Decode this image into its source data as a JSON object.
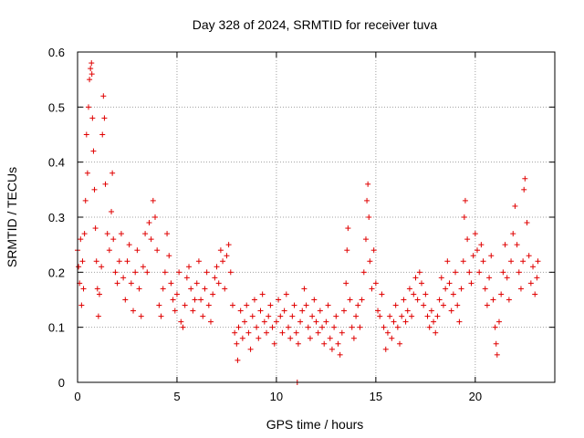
{
  "chart_data": {
    "type": "scatter",
    "title": "Day 328 of 2024, SRMTID for receiver tuva",
    "xlabel": "GPS time / hours",
    "ylabel": "SRMTID / TECUs",
    "xlim": [
      0,
      24
    ],
    "ylim": [
      0,
      0.6
    ],
    "xticks": [
      0,
      5,
      10,
      15,
      20
    ],
    "yticks": [
      0,
      0.1,
      0.2,
      0.3,
      0.4,
      0.5,
      0.6
    ],
    "xtick_labels": [
      "0",
      "5",
      "10",
      "15",
      "20"
    ],
    "ytick_labels": [
      "0",
      "0.1",
      "0.2",
      "0.3",
      "0.4",
      "0.5",
      "0.6"
    ],
    "grid": true,
    "marker": "+",
    "series": [
      {
        "name": "SRMTID",
        "color": "#e00000",
        "points": [
          [
            0.0,
            0.24
          ],
          [
            0.05,
            0.21
          ],
          [
            0.1,
            0.18
          ],
          [
            0.15,
            0.26
          ],
          [
            0.2,
            0.14
          ],
          [
            0.25,
            0.22
          ],
          [
            0.3,
            0.17
          ],
          [
            0.35,
            0.27
          ],
          [
            0.4,
            0.33
          ],
          [
            0.45,
            0.45
          ],
          [
            0.5,
            0.38
          ],
          [
            0.55,
            0.5
          ],
          [
            0.6,
            0.55
          ],
          [
            0.65,
            0.57
          ],
          [
            0.7,
            0.58
          ],
          [
            0.72,
            0.56
          ],
          [
            0.75,
            0.48
          ],
          [
            0.8,
            0.42
          ],
          [
            0.85,
            0.35
          ],
          [
            0.9,
            0.28
          ],
          [
            0.95,
            0.22
          ],
          [
            1.0,
            0.17
          ],
          [
            1.05,
            0.12
          ],
          [
            1.1,
            0.16
          ],
          [
            1.2,
            0.21
          ],
          [
            1.25,
            0.45
          ],
          [
            1.3,
            0.52
          ],
          [
            1.35,
            0.48
          ],
          [
            1.4,
            0.36
          ],
          [
            1.5,
            0.27
          ],
          [
            1.6,
            0.24
          ],
          [
            1.7,
            0.31
          ],
          [
            1.75,
            0.38
          ],
          [
            1.8,
            0.26
          ],
          [
            1.9,
            0.2
          ],
          [
            2.0,
            0.18
          ],
          [
            2.1,
            0.22
          ],
          [
            2.2,
            0.27
          ],
          [
            2.3,
            0.19
          ],
          [
            2.4,
            0.15
          ],
          [
            2.5,
            0.22
          ],
          [
            2.6,
            0.25
          ],
          [
            2.7,
            0.18
          ],
          [
            2.8,
            0.13
          ],
          [
            2.9,
            0.2
          ],
          [
            3.0,
            0.24
          ],
          [
            3.1,
            0.17
          ],
          [
            3.2,
            0.12
          ],
          [
            3.3,
            0.21
          ],
          [
            3.4,
            0.27
          ],
          [
            3.5,
            0.2
          ],
          [
            3.6,
            0.29
          ],
          [
            3.7,
            0.26
          ],
          [
            3.8,
            0.33
          ],
          [
            3.9,
            0.3
          ],
          [
            4.0,
            0.24
          ],
          [
            4.1,
            0.14
          ],
          [
            4.2,
            0.12
          ],
          [
            4.3,
            0.17
          ],
          [
            4.4,
            0.2
          ],
          [
            4.5,
            0.27
          ],
          [
            4.6,
            0.23
          ],
          [
            4.7,
            0.18
          ],
          [
            4.8,
            0.15
          ],
          [
            4.9,
            0.13
          ],
          [
            5.0,
            0.16
          ],
          [
            5.1,
            0.2
          ],
          [
            5.2,
            0.11
          ],
          [
            5.3,
            0.1
          ],
          [
            5.4,
            0.14
          ],
          [
            5.5,
            0.19
          ],
          [
            5.6,
            0.21
          ],
          [
            5.7,
            0.17
          ],
          [
            5.8,
            0.13
          ],
          [
            5.9,
            0.15
          ],
          [
            6.0,
            0.18
          ],
          [
            6.1,
            0.22
          ],
          [
            6.2,
            0.15
          ],
          [
            6.3,
            0.12
          ],
          [
            6.4,
            0.17
          ],
          [
            6.5,
            0.2
          ],
          [
            6.6,
            0.14
          ],
          [
            6.7,
            0.11
          ],
          [
            6.8,
            0.16
          ],
          [
            6.9,
            0.19
          ],
          [
            7.0,
            0.21
          ],
          [
            7.1,
            0.18
          ],
          [
            7.2,
            0.24
          ],
          [
            7.3,
            0.22
          ],
          [
            7.4,
            0.17
          ],
          [
            7.5,
            0.23
          ],
          [
            7.6,
            0.25
          ],
          [
            7.7,
            0.2
          ],
          [
            7.8,
            0.14
          ],
          [
            7.9,
            0.09
          ],
          [
            8.0,
            0.07
          ],
          [
            8.05,
            0.04
          ],
          [
            8.1,
            0.1
          ],
          [
            8.2,
            0.13
          ],
          [
            8.3,
            0.08
          ],
          [
            8.4,
            0.11
          ],
          [
            8.5,
            0.14
          ],
          [
            8.6,
            0.09
          ],
          [
            8.7,
            0.06
          ],
          [
            8.8,
            0.12
          ],
          [
            8.9,
            0.15
          ],
          [
            9.0,
            0.1
          ],
          [
            9.1,
            0.08
          ],
          [
            9.2,
            0.13
          ],
          [
            9.3,
            0.16
          ],
          [
            9.4,
            0.11
          ],
          [
            9.5,
            0.09
          ],
          [
            9.6,
            0.12
          ],
          [
            9.7,
            0.14
          ],
          [
            9.8,
            0.1
          ],
          [
            9.9,
            0.07
          ],
          [
            10.0,
            0.11
          ],
          [
            10.1,
            0.15
          ],
          [
            10.2,
            0.12
          ],
          [
            10.3,
            0.09
          ],
          [
            10.4,
            0.13
          ],
          [
            10.5,
            0.16
          ],
          [
            10.6,
            0.1
          ],
          [
            10.7,
            0.08
          ],
          [
            10.8,
            0.12
          ],
          [
            10.9,
            0.14
          ],
          [
            11.0,
            0.09
          ],
          [
            11.05,
            0.0
          ],
          [
            11.1,
            0.07
          ],
          [
            11.2,
            0.11
          ],
          [
            11.3,
            0.13
          ],
          [
            11.4,
            0.17
          ],
          [
            11.5,
            0.14
          ],
          [
            11.6,
            0.1
          ],
          [
            11.7,
            0.08
          ],
          [
            11.8,
            0.12
          ],
          [
            11.9,
            0.15
          ],
          [
            12.0,
            0.11
          ],
          [
            12.1,
            0.09
          ],
          [
            12.2,
            0.13
          ],
          [
            12.3,
            0.1
          ],
          [
            12.4,
            0.07
          ],
          [
            12.5,
            0.11
          ],
          [
            12.6,
            0.14
          ],
          [
            12.7,
            0.08
          ],
          [
            12.8,
            0.06
          ],
          [
            12.9,
            0.1
          ],
          [
            13.0,
            0.12
          ],
          [
            13.1,
            0.07
          ],
          [
            13.2,
            0.05
          ],
          [
            13.3,
            0.09
          ],
          [
            13.4,
            0.13
          ],
          [
            13.5,
            0.18
          ],
          [
            13.55,
            0.24
          ],
          [
            13.6,
            0.28
          ],
          [
            13.7,
            0.15
          ],
          [
            13.8,
            0.1
          ],
          [
            13.9,
            0.08
          ],
          [
            14.0,
            0.12
          ],
          [
            14.1,
            0.14
          ],
          [
            14.2,
            0.1
          ],
          [
            14.3,
            0.15
          ],
          [
            14.4,
            0.2
          ],
          [
            14.5,
            0.26
          ],
          [
            14.55,
            0.33
          ],
          [
            14.6,
            0.36
          ],
          [
            14.65,
            0.3
          ],
          [
            14.7,
            0.22
          ],
          [
            14.8,
            0.17
          ],
          [
            14.9,
            0.24
          ],
          [
            15.0,
            0.18
          ],
          [
            15.1,
            0.13
          ],
          [
            15.2,
            0.12
          ],
          [
            15.3,
            0.16
          ],
          [
            15.4,
            0.1
          ],
          [
            15.5,
            0.06
          ],
          [
            15.6,
            0.09
          ],
          [
            15.7,
            0.12
          ],
          [
            15.8,
            0.08
          ],
          [
            15.9,
            0.11
          ],
          [
            16.0,
            0.14
          ],
          [
            16.1,
            0.1
          ],
          [
            16.2,
            0.07
          ],
          [
            16.3,
            0.12
          ],
          [
            16.4,
            0.15
          ],
          [
            16.5,
            0.11
          ],
          [
            16.6,
            0.13
          ],
          [
            16.7,
            0.17
          ],
          [
            16.8,
            0.12
          ],
          [
            16.9,
            0.16
          ],
          [
            17.0,
            0.19
          ],
          [
            17.1,
            0.15
          ],
          [
            17.2,
            0.2
          ],
          [
            17.3,
            0.18
          ],
          [
            17.4,
            0.14
          ],
          [
            17.5,
            0.16
          ],
          [
            17.6,
            0.12
          ],
          [
            17.7,
            0.1
          ],
          [
            17.8,
            0.13
          ],
          [
            17.9,
            0.11
          ],
          [
            18.0,
            0.09
          ],
          [
            18.1,
            0.12
          ],
          [
            18.2,
            0.15
          ],
          [
            18.3,
            0.19
          ],
          [
            18.4,
            0.14
          ],
          [
            18.5,
            0.17
          ],
          [
            18.6,
            0.22
          ],
          [
            18.7,
            0.18
          ],
          [
            18.8,
            0.13
          ],
          [
            18.9,
            0.16
          ],
          [
            19.0,
            0.2
          ],
          [
            19.1,
            0.14
          ],
          [
            19.2,
            0.11
          ],
          [
            19.3,
            0.17
          ],
          [
            19.4,
            0.22
          ],
          [
            19.45,
            0.3
          ],
          [
            19.5,
            0.33
          ],
          [
            19.6,
            0.26
          ],
          [
            19.7,
            0.2
          ],
          [
            19.8,
            0.18
          ],
          [
            19.9,
            0.23
          ],
          [
            20.0,
            0.27
          ],
          [
            20.1,
            0.24
          ],
          [
            20.2,
            0.2
          ],
          [
            20.3,
            0.25
          ],
          [
            20.4,
            0.22
          ],
          [
            20.5,
            0.17
          ],
          [
            20.6,
            0.14
          ],
          [
            20.7,
            0.19
          ],
          [
            20.8,
            0.23
          ],
          [
            20.9,
            0.15
          ],
          [
            21.0,
            0.1
          ],
          [
            21.05,
            0.07
          ],
          [
            21.1,
            0.05
          ],
          [
            21.2,
            0.11
          ],
          [
            21.3,
            0.16
          ],
          [
            21.4,
            0.2
          ],
          [
            21.5,
            0.25
          ],
          [
            21.6,
            0.19
          ],
          [
            21.7,
            0.15
          ],
          [
            21.8,
            0.22
          ],
          [
            21.9,
            0.27
          ],
          [
            22.0,
            0.32
          ],
          [
            22.1,
            0.25
          ],
          [
            22.2,
            0.2
          ],
          [
            22.3,
            0.17
          ],
          [
            22.4,
            0.22
          ],
          [
            22.45,
            0.35
          ],
          [
            22.5,
            0.37
          ],
          [
            22.6,
            0.29
          ],
          [
            22.7,
            0.23
          ],
          [
            22.8,
            0.18
          ],
          [
            22.9,
            0.21
          ],
          [
            23.0,
            0.16
          ],
          [
            23.1,
            0.19
          ],
          [
            23.15,
            0.22
          ]
        ]
      }
    ]
  }
}
